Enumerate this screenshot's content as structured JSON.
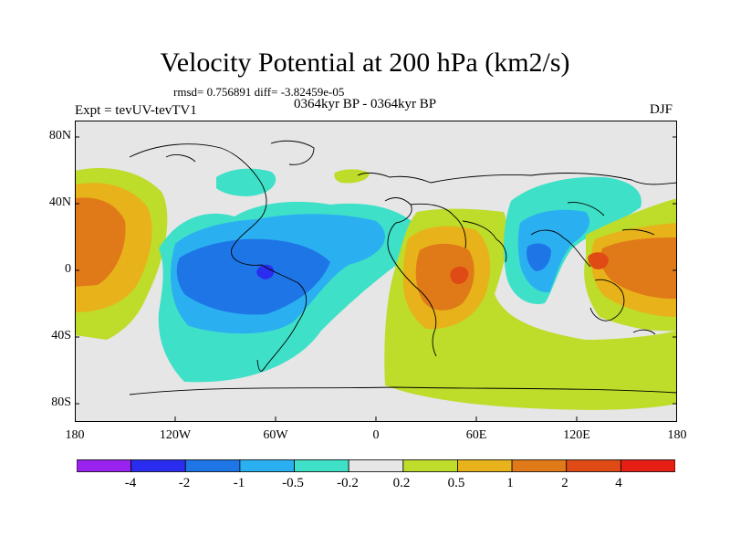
{
  "title": "Velocity Potential at 200 hPa (km2/s)",
  "stats": "rmsd= 0.756891 diff= -3.82459e-05",
  "experiment": "Expt = tevUV-tevTV1",
  "period": "0364kyr BP - 0364kyr BP",
  "season": "DJF",
  "map": {
    "lat_labels": [
      "80N",
      "40N",
      "0",
      "40S",
      "80S"
    ],
    "lon_labels": [
      "180",
      "120W",
      "60W",
      "0",
      "60E",
      "120E",
      "180"
    ],
    "field_colors": {
      "neutral": "#e6e6e6",
      "blue_light": "#3fe0c8",
      "blue_mid": "#2ab0f0",
      "blue_dark": "#1e76e6",
      "blue_deep": "#2a2cf0",
      "yellow_green": "#bedc2a",
      "orange_light": "#e8b21a",
      "orange": "#e07a18",
      "red_orange": "#e04a14"
    }
  },
  "colorbar": {
    "colors": [
      "#9a22ee",
      "#2a2cf0",
      "#1e76e6",
      "#2ab0f0",
      "#3fe0c8",
      "#e6e6e6",
      "#bedc2a",
      "#e8b21a",
      "#e07a18",
      "#e04a14",
      "#e61e14"
    ],
    "labels": [
      "-4",
      "-2",
      "-1",
      "-0.5",
      "-0.2",
      "0.2",
      "0.5",
      "1",
      "2",
      "4"
    ]
  }
}
